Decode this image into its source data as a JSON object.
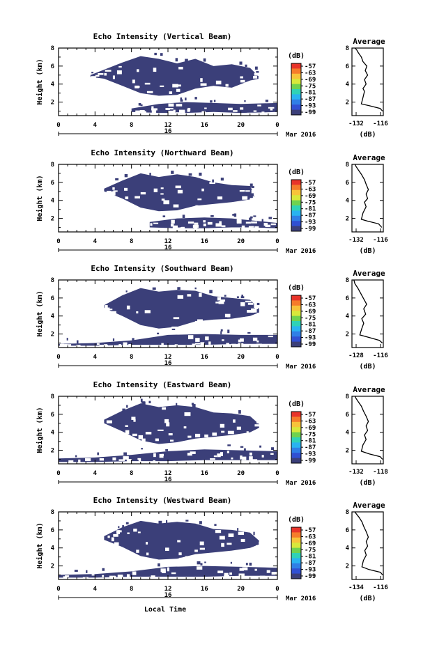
{
  "figure": {
    "x_axis_title": "Local Time",
    "date_label": "Mar 2016",
    "day_label": "16"
  },
  "chart_data": [
    {
      "type": "heatmap",
      "title": "Echo Intensity (Vertical Beam)",
      "ylabel": "Height (km)",
      "xlabel": "Local Time",
      "x_ticks": [
        "0",
        "4",
        "8",
        "12",
        "16",
        "20",
        "0"
      ],
      "y_ticks": [
        "2",
        "4",
        "6",
        "8"
      ],
      "xlim": [
        0,
        24
      ],
      "ylim": [
        0.5,
        8
      ],
      "colorbar": {
        "unit": "(dB)",
        "ticks": [
          "-57",
          "-63",
          "-69",
          "-75",
          "-81",
          "-87",
          "-93",
          "-99"
        ]
      },
      "echo_regions": [
        {
          "t": [
            3.5,
            5,
            7,
            9,
            11,
            13,
            15,
            17,
            19,
            21,
            22
          ],
          "top": [
            5.0,
            5.6,
            6.4,
            7.1,
            6.8,
            6.3,
            6.8,
            6.0,
            6.2,
            5.8,
            4.8
          ],
          "bottom": [
            4.8,
            4.6,
            3.8,
            3.0,
            2.7,
            2.8,
            3.5,
            3.8,
            3.6,
            4.4,
            4.6
          ]
        },
        {
          "t": [
            8,
            11,
            14,
            17,
            20,
            24
          ],
          "top": [
            1.3,
            1.8,
            2.0,
            1.9,
            1.8,
            1.9
          ],
          "bottom": [
            0.9,
            0.8,
            0.8,
            0.9,
            0.8,
            0.9
          ]
        }
      ]
    },
    {
      "type": "line",
      "title": "Average",
      "xlabel": "(dB)",
      "x_ticks": [
        "-132",
        "-116"
      ],
      "xlim": [
        -134,
        -114
      ],
      "y_ticks": [
        "2",
        "4",
        "6",
        "8"
      ],
      "ylim": [
        0.5,
        8
      ],
      "x": [
        -114.5,
        -116,
        -123,
        -128,
        -127,
        -126,
        -127,
        -125,
        -126,
        -124,
        -125.5,
        -124.5,
        -127,
        -128,
        -130,
        -131,
        -132
      ],
      "y": [
        1.0,
        1.3,
        1.6,
        1.8,
        2.5,
        3.2,
        3.5,
        4.0,
        4.5,
        5.0,
        5.5,
        6.0,
        6.5,
        7.0,
        7.5,
        7.8,
        8.0
      ]
    },
    {
      "type": "heatmap",
      "title": "Echo Intensity (Northward Beam)",
      "ylabel": "Height (km)",
      "xlabel": "Local Time",
      "x_ticks": [
        "0",
        "4",
        "8",
        "12",
        "16",
        "20",
        "0"
      ],
      "y_ticks": [
        "2",
        "4",
        "6",
        "8"
      ],
      "xlim": [
        0,
        24
      ],
      "ylim": [
        0.5,
        8
      ],
      "colorbar": {
        "unit": "(dB)",
        "ticks": [
          "-57",
          "-63",
          "-69",
          "-75",
          "-81",
          "-87",
          "-93",
          "-99"
        ]
      },
      "echo_regions": [
        {
          "t": [
            5,
            7,
            9,
            11,
            13,
            15,
            17,
            19,
            21,
            21.5
          ],
          "top": [
            5.3,
            6.2,
            7.0,
            6.6,
            6.9,
            6.6,
            6.0,
            5.7,
            5.6,
            4.6
          ],
          "bottom": [
            5.0,
            4.2,
            3.2,
            2.8,
            2.9,
            3.4,
            3.6,
            3.8,
            4.1,
            4.4
          ]
        },
        {
          "t": [
            10,
            13,
            16,
            19,
            21,
            24
          ],
          "top": [
            1.6,
            2.0,
            2.1,
            2.0,
            1.8,
            1.5
          ],
          "bottom": [
            1.0,
            0.9,
            0.9,
            1.0,
            1.0,
            0.9
          ]
        }
      ]
    },
    {
      "type": "line",
      "title": "Average",
      "xlabel": "(dB)",
      "x_ticks": [
        "-132",
        "-116"
      ],
      "xlim": [
        -134,
        -114
      ],
      "y_ticks": [
        "2",
        "4",
        "6",
        "8"
      ],
      "ylim": [
        0.5,
        8
      ],
      "x": [
        -115,
        -117,
        -124,
        -128,
        -127,
        -125,
        -126,
        -124,
        -125,
        -123.5,
        -125,
        -126,
        -128,
        -130,
        -131.5,
        -132
      ],
      "y": [
        1.0,
        1.4,
        1.7,
        1.9,
        2.6,
        3.3,
        3.8,
        4.2,
        4.7,
        5.2,
        5.8,
        6.3,
        6.9,
        7.4,
        7.8,
        8.0
      ]
    },
    {
      "type": "heatmap",
      "title": "Echo Intensity (Southward Beam)",
      "ylabel": "Height (km)",
      "xlabel": "Local Time",
      "x_ticks": [
        "0",
        "4",
        "8",
        "12",
        "16",
        "20",
        "0"
      ],
      "y_ticks": [
        "2",
        "4",
        "6",
        "8"
      ],
      "xlim": [
        0,
        24
      ],
      "ylim": [
        0.5,
        8
      ],
      "colorbar": {
        "unit": "(dB)",
        "ticks": [
          "-57",
          "-63",
          "-69",
          "-75",
          "-81",
          "-87",
          "-93",
          "-99"
        ]
      },
      "echo_regions": [
        {
          "t": [
            5,
            7,
            9,
            11,
            13,
            15,
            17,
            19,
            21,
            22
          ],
          "top": [
            5.2,
            6.3,
            7.1,
            6.7,
            6.9,
            6.8,
            6.2,
            6.0,
            5.8,
            4.8
          ],
          "bottom": [
            4.9,
            4.0,
            3.0,
            2.6,
            2.8,
            3.4,
            3.6,
            3.7,
            4.0,
            4.4
          ]
        },
        {
          "t": [
            0,
            4,
            8,
            12,
            16,
            20,
            24
          ],
          "top": [
            0.9,
            1.0,
            1.3,
            1.9,
            2.0,
            1.9,
            1.9
          ],
          "bottom": [
            0.7,
            0.7,
            0.8,
            0.8,
            0.8,
            0.9,
            0.9
          ]
        }
      ]
    },
    {
      "type": "line",
      "title": "Average",
      "xlabel": "(dB)",
      "x_ticks": [
        "-128",
        "-116"
      ],
      "xlim": [
        -130,
        -114
      ],
      "y_ticks": [
        "2",
        "4",
        "6",
        "8"
      ],
      "ylim": [
        0.5,
        8
      ],
      "x": [
        -114.5,
        -116,
        -121,
        -126,
        -125,
        -124,
        -125,
        -123,
        -124,
        -122.5,
        -124,
        -125.5,
        -127,
        -128.5,
        -129
      ],
      "y": [
        1.0,
        1.3,
        1.6,
        1.9,
        2.6,
        3.2,
        3.7,
        4.2,
        4.8,
        5.3,
        5.9,
        6.5,
        7.1,
        7.6,
        8.0
      ]
    },
    {
      "type": "heatmap",
      "title": "Echo Intensity (Eastward Beam)",
      "ylabel": "Height (km)",
      "xlabel": "Local Time",
      "x_ticks": [
        "0",
        "4",
        "8",
        "12",
        "16",
        "20",
        "0"
      ],
      "y_ticks": [
        "2",
        "4",
        "6",
        "8"
      ],
      "xlim": [
        0,
        24
      ],
      "ylim": [
        0.5,
        8
      ],
      "colorbar": {
        "unit": "(dB)",
        "ticks": [
          "-57",
          "-63",
          "-69",
          "-75",
          "-81",
          "-87",
          "-93",
          "-99"
        ]
      },
      "echo_regions": [
        {
          "t": [
            5,
            7,
            9,
            11,
            13,
            15,
            17,
            19,
            21,
            22
          ],
          "top": [
            5.4,
            6.4,
            7.2,
            6.8,
            7.0,
            6.8,
            6.2,
            6.1,
            5.8,
            4.9
          ],
          "bottom": [
            5.0,
            4.1,
            3.1,
            2.7,
            2.9,
            3.3,
            3.5,
            3.7,
            4.0,
            4.5
          ]
        },
        {
          "t": [
            0,
            4,
            8,
            12,
            16,
            20,
            24
          ],
          "top": [
            1.1,
            1.2,
            1.5,
            1.9,
            2.1,
            2.0,
            1.9
          ],
          "bottom": [
            0.7,
            0.7,
            0.8,
            0.8,
            0.9,
            0.9,
            0.9
          ]
        }
      ]
    },
    {
      "type": "line",
      "title": "Average",
      "xlabel": "(dB)",
      "x_ticks": [
        "-132",
        "-118"
      ],
      "xlim": [
        -134,
        -114
      ],
      "y_ticks": [
        "2",
        "4",
        "6",
        "8"
      ],
      "ylim": [
        0.5,
        8
      ],
      "x": [
        -114.5,
        -116,
        -123,
        -128,
        -127,
        -125,
        -126,
        -124,
        -125,
        -123.5,
        -125,
        -126.5,
        -128,
        -130,
        -131.5,
        -132
      ],
      "y": [
        1.0,
        1.3,
        1.6,
        1.9,
        2.6,
        3.2,
        3.7,
        4.2,
        4.7,
        5.2,
        5.8,
        6.3,
        6.9,
        7.4,
        7.8,
        8.0
      ]
    },
    {
      "type": "heatmap",
      "title": "Echo Intensity (Westward Beam)",
      "ylabel": "Height (km)",
      "xlabel": "Local Time",
      "x_ticks": [
        "0",
        "4",
        "8",
        "12",
        "16",
        "20",
        "0"
      ],
      "y_ticks": [
        "2",
        "4",
        "6",
        "8"
      ],
      "xlim": [
        0,
        24
      ],
      "ylim": [
        0.5,
        8
      ],
      "colorbar": {
        "unit": "(dB)",
        "ticks": [
          "-57",
          "-63",
          "-69",
          "-75",
          "-81",
          "-87",
          "-93",
          "-99"
        ]
      },
      "echo_regions": [
        {
          "t": [
            5,
            7,
            9,
            11,
            13,
            15,
            17,
            19,
            21,
            22
          ],
          "top": [
            5.3,
            6.3,
            7.0,
            6.7,
            6.9,
            6.7,
            6.1,
            6.0,
            5.7,
            4.8
          ],
          "bottom": [
            4.9,
            4.1,
            3.1,
            2.7,
            2.8,
            3.3,
            3.5,
            3.7,
            4.0,
            4.4
          ]
        },
        {
          "t": [
            0,
            4,
            8,
            12,
            16,
            20,
            24
          ],
          "top": [
            1.0,
            1.1,
            1.4,
            1.9,
            2.0,
            1.9,
            1.8
          ],
          "bottom": [
            0.7,
            0.7,
            0.8,
            0.8,
            0.8,
            0.9,
            0.9
          ]
        }
      ]
    },
    {
      "type": "line",
      "title": "Average",
      "xlabel": "(dB)",
      "x_ticks": [
        "-134",
        "-116"
      ],
      "xlim": [
        -136,
        -114
      ],
      "y_ticks": [
        "2",
        "4",
        "6",
        "8"
      ],
      "ylim": [
        0.5,
        8
      ],
      "x": [
        -114.5,
        -116,
        -124,
        -129,
        -128,
        -126,
        -127,
        -125,
        -126,
        -124.5,
        -126,
        -127.5,
        -129,
        -131,
        -133,
        -134
      ],
      "y": [
        1.0,
        1.3,
        1.6,
        1.9,
        2.6,
        3.2,
        3.7,
        4.2,
        4.7,
        5.2,
        5.8,
        6.3,
        6.9,
        7.4,
        7.8,
        8.0
      ]
    }
  ],
  "colors": {
    "echo_fill": "#3b3f79",
    "colorbar": [
      "#e8342a",
      "#f57c2b",
      "#f7c33a",
      "#d8e83b",
      "#6fd24f",
      "#2fd2b6",
      "#29b3f0",
      "#2f7fe6",
      "#3050d2",
      "#3b3f79"
    ]
  }
}
